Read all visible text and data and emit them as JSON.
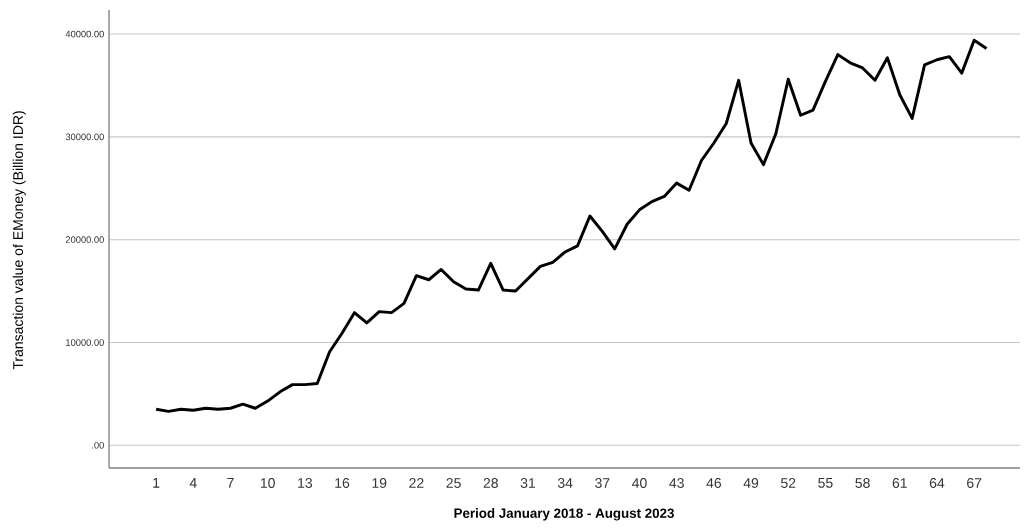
{
  "chart_data": {
    "type": "line",
    "xlabel": "Period January 2018 - August 2023",
    "ylabel": "Transaction value of  EMoney (Billion IDR)",
    "x": [
      1,
      2,
      3,
      4,
      5,
      6,
      7,
      8,
      9,
      10,
      11,
      12,
      13,
      14,
      15,
      16,
      17,
      18,
      19,
      20,
      21,
      22,
      23,
      24,
      25,
      26,
      27,
      28,
      29,
      30,
      31,
      32,
      33,
      34,
      35,
      36,
      37,
      38,
      39,
      40,
      41,
      42,
      43,
      44,
      45,
      46,
      47,
      48,
      49,
      50,
      51,
      52,
      53,
      54,
      55,
      56,
      57,
      58,
      59,
      60,
      61,
      62,
      63,
      64,
      65,
      66,
      67,
      68
    ],
    "series": [
      {
        "color": "#000000",
        "values": [
          3500,
          3300,
          3500,
          3400,
          3600,
          3500,
          3600,
          4000,
          3600,
          4300,
          5200,
          5900,
          5900,
          6000,
          9100,
          10900,
          12900,
          11900,
          13000,
          12900,
          13800,
          16500,
          16100,
          17100,
          15900,
          15200,
          15100,
          17700,
          15100,
          15000,
          16200,
          17400,
          17800,
          18800,
          19400,
          22300,
          20800,
          19100,
          21500,
          22900,
          23700,
          24200,
          25500,
          24800,
          27700,
          29400,
          31300,
          35500,
          29400,
          27300,
          30300,
          35600,
          32100,
          32600,
          35400,
          38000,
          37200,
          36700,
          35500,
          37700,
          34100,
          31800,
          37000,
          37500,
          37800,
          36200,
          39400,
          38600
        ]
      }
    ],
    "xlim": [
      -2.8,
      70.7
    ],
    "ylim": [
      -2210,
      42340
    ],
    "xticks": [
      1,
      4,
      7,
      10,
      13,
      16,
      19,
      22,
      25,
      28,
      31,
      34,
      37,
      40,
      43,
      46,
      49,
      52,
      55,
      58,
      61,
      64,
      67
    ],
    "yticks": [
      {
        "value": 0,
        "label": ".00"
      },
      {
        "value": 10000,
        "label": "10000.00"
      },
      {
        "value": 20000,
        "label": "20000.00"
      },
      {
        "value": 30000,
        "label": "30000.00"
      },
      {
        "value": 40000,
        "label": "40000.00"
      }
    ],
    "grid": "y",
    "legend": false,
    "marker": "none",
    "line_style": "solid"
  }
}
